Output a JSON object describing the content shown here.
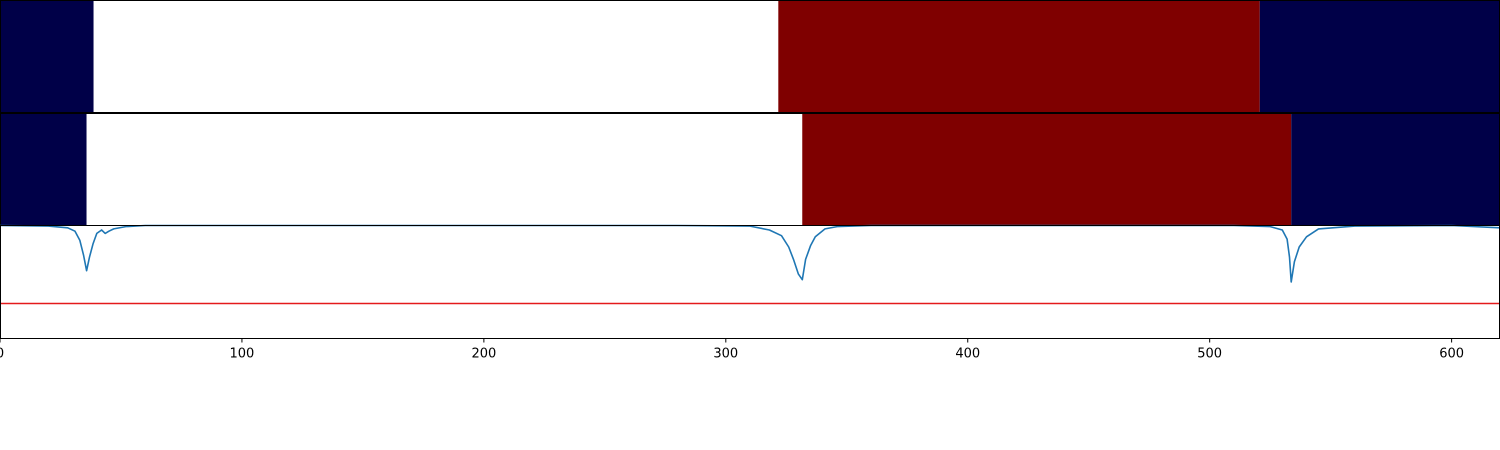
{
  "chart_data": [
    {
      "type": "heatmap",
      "panel": "top-strip",
      "x_range": [
        0,
        620
      ],
      "colors": {
        "low": "#000048",
        "mid": "#ffffff",
        "high": "#7f0000"
      },
      "segments": [
        {
          "from": 0,
          "to": 38.7,
          "level": "low"
        },
        {
          "from": 38.7,
          "to": 321.7,
          "level": "mid"
        },
        {
          "from": 321.7,
          "to": 520.7,
          "level": "high"
        },
        {
          "from": 520.7,
          "to": 620,
          "level": "low"
        }
      ]
    },
    {
      "type": "heatmap",
      "panel": "middle-strip",
      "x_range": [
        0,
        620
      ],
      "colors": {
        "low": "#000048",
        "mid": "#ffffff",
        "high": "#7f0000"
      },
      "segments": [
        {
          "from": 0,
          "to": 35.8,
          "level": "low"
        },
        {
          "from": 35.8,
          "to": 331.6,
          "level": "mid"
        },
        {
          "from": 331.6,
          "to": 533.7,
          "level": "high"
        },
        {
          "from": 533.7,
          "to": 620,
          "level": "low"
        }
      ]
    },
    {
      "type": "line",
      "panel": "bottom-plot",
      "xlim": [
        0,
        620
      ],
      "ylim": [
        0,
        1
      ],
      "xticks": [
        0,
        100,
        200,
        300,
        400,
        500,
        600
      ],
      "xtick_labels": [
        "0",
        "100",
        "200",
        "300",
        "400",
        "500",
        "600"
      ],
      "threshold": {
        "y": 0.31,
        "color": "#e41a1c"
      },
      "series": [
        {
          "color": "#1f77b4",
          "x": [
            0,
            20,
            28,
            31,
            33,
            34.5,
            35.8,
            37,
            38.5,
            40,
            42,
            43.5,
            45,
            47,
            52,
            60,
            80,
            120,
            200,
            280,
            310,
            318,
            323,
            326,
            328,
            330,
            331.6,
            333,
            335,
            337,
            341,
            346,
            360,
            400,
            460,
            510,
            525,
            530,
            532,
            533,
            533.7,
            535,
            537,
            540,
            545,
            560,
            600,
            620
          ],
          "y": [
            1.0,
            0.995,
            0.98,
            0.95,
            0.87,
            0.74,
            0.6,
            0.72,
            0.84,
            0.93,
            0.96,
            0.93,
            0.95,
            0.97,
            0.99,
            1.0,
            1.0,
            1.0,
            1.0,
            1.0,
            0.995,
            0.96,
            0.91,
            0.81,
            0.7,
            0.57,
            0.52,
            0.7,
            0.82,
            0.9,
            0.97,
            0.99,
            1.0,
            1.0,
            1.0,
            1.0,
            0.99,
            0.96,
            0.88,
            0.72,
            0.5,
            0.68,
            0.81,
            0.9,
            0.97,
            0.995,
            1.0,
            0.98
          ]
        }
      ]
    }
  ]
}
